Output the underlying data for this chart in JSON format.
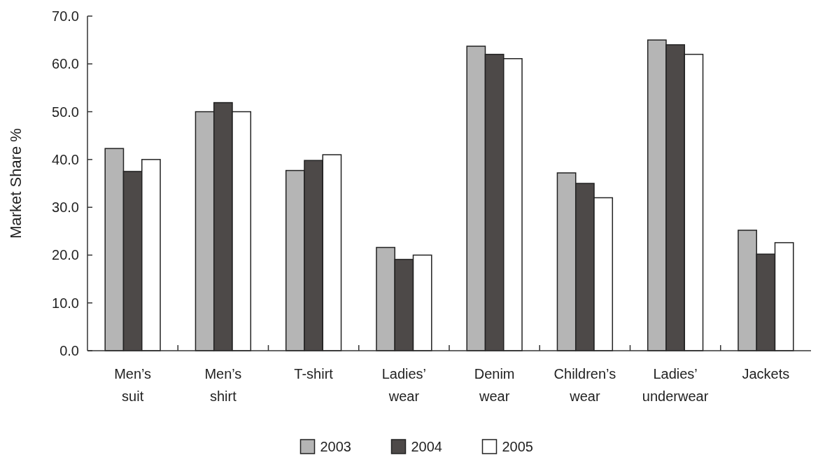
{
  "chart_data": {
    "type": "bar",
    "ylabel": "Market Share %",
    "categories": [
      "Men’s suit",
      "Men’s shirt",
      "T-shirt",
      "Ladies’ wear",
      "Denim wear",
      "Children’s wear",
      "Ladies’ underwear",
      "Jackets"
    ],
    "series": [
      {
        "name": "2003",
        "color": "#b5b5b5",
        "values": [
          42.3,
          50.0,
          37.7,
          21.6,
          63.7,
          37.2,
          65.0,
          25.2
        ]
      },
      {
        "name": "2004",
        "color": "#4d4948",
        "values": [
          37.5,
          51.9,
          39.8,
          19.1,
          62.0,
          35.0,
          64.0,
          20.2
        ]
      },
      {
        "name": "2005",
        "color": "#ffffff",
        "values": [
          40.0,
          50.0,
          41.0,
          20.0,
          61.1,
          32.0,
          62.0,
          22.6
        ]
      }
    ],
    "ylim": [
      0,
      70
    ],
    "yticks": [
      {
        "value": 0,
        "label": "0.0"
      },
      {
        "value": 10,
        "label": "10.0"
      },
      {
        "value": 20,
        "label": "20.0"
      },
      {
        "value": 30,
        "label": "30.0"
      },
      {
        "value": 40,
        "label": "40.0"
      },
      {
        "value": 50,
        "label": "50.0"
      },
      {
        "value": 60,
        "label": "60.0"
      },
      {
        "value": 70,
        "label": "70.0"
      }
    ],
    "legend": "bottom"
  }
}
